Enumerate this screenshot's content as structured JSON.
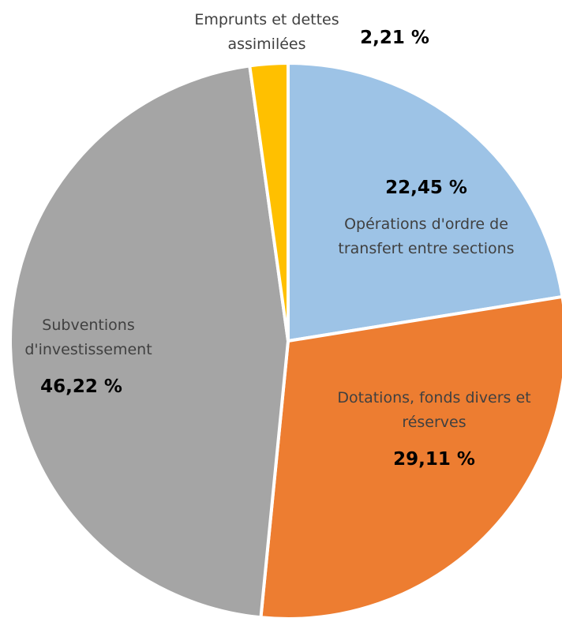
{
  "chart_data": {
    "type": "pie",
    "categories": [
      "Opérations d'ordre de transfert entre sections",
      "Dotations, fonds divers et réserves",
      "Subventions d'investissement",
      "Emprunts et dettes assimilées"
    ],
    "values": [
      22.45,
      29.11,
      46.22,
      2.21
    ],
    "value_labels": [
      "22,45 %",
      "29,11 %",
      "46,22 %",
      "2,21 %"
    ],
    "colors": [
      "#9dc3e6",
      "#ed7d31",
      "#a5a5a5",
      "#ffc000"
    ]
  }
}
